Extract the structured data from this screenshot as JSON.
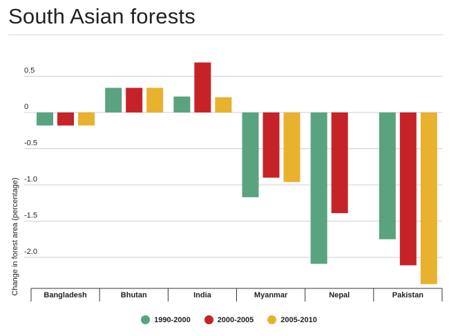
{
  "page": {
    "title": "South Asian forests"
  },
  "chart_data": {
    "type": "bar",
    "title": "South Asian forests",
    "xlabel": "",
    "ylabel": "Change in forest area (percentage)",
    "categories": [
      "Bangladesh",
      "Bhutan",
      "India",
      "Myanmar",
      "Nepal",
      "Pakistan"
    ],
    "series": [
      {
        "name": "1990-2000",
        "color": "#5aa37f",
        "values": [
          -0.18,
          0.34,
          0.22,
          -1.17,
          -2.09,
          -1.75
        ]
      },
      {
        "name": "2000-2005",
        "color": "#c62328",
        "values": [
          -0.18,
          0.34,
          0.69,
          -0.9,
          -1.39,
          -2.11
        ]
      },
      {
        "name": "2005-2010",
        "color": "#e8b22f",
        "values": [
          -0.18,
          0.34,
          0.21,
          -0.96,
          null,
          -2.37
        ]
      }
    ],
    "yticks": [
      0.5,
      0,
      -0.5,
      -1.0,
      -1.5,
      -2.0
    ],
    "ytick_labels": [
      "0.5",
      "0",
      "-0.5",
      "-1.0",
      "-1.5",
      "-2.0"
    ],
    "ylim": [
      -2.4,
      0.8
    ],
    "grid": true,
    "legend": "bottom-center"
  }
}
